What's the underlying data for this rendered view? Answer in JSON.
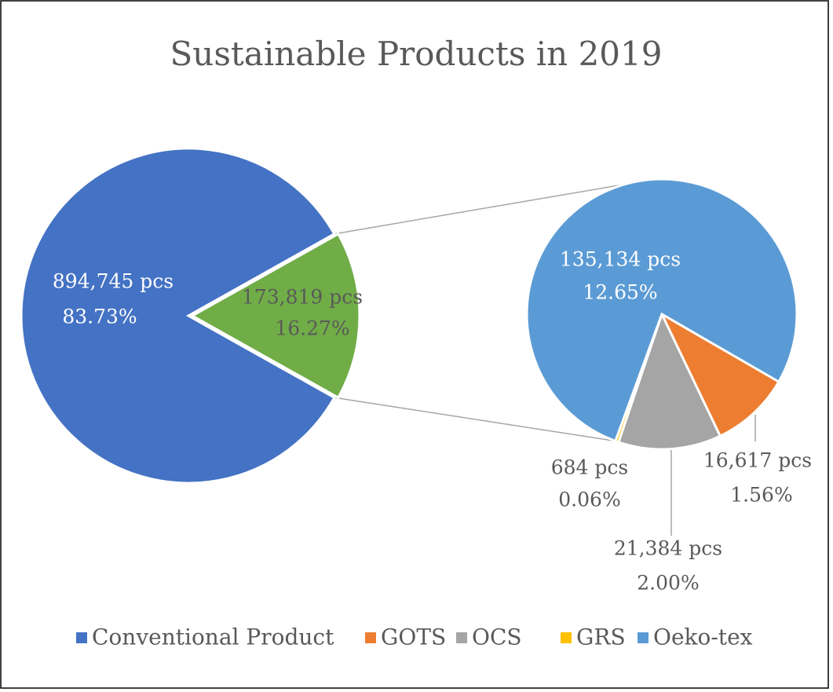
{
  "chart_data": {
    "type": "pie-of-pie",
    "title": "Sustainable Products in 2019",
    "categories": [
      "Conventional Product",
      "GOTS",
      "OCS",
      "GRS",
      "Oeko-tex"
    ],
    "values": [
      894745,
      16617,
      21384,
      684,
      135134
    ],
    "value_labels": [
      "894,745 pcs",
      "16,617 pcs",
      "21,384 pcs",
      "684 pcs",
      "135,134 pcs"
    ],
    "percent_labels": [
      "83.73%",
      "1.56%",
      "2.00%",
      "0.06%",
      "12.65%"
    ],
    "colors": [
      "#4472c4",
      "#ed7d31",
      "#a5a5a5",
      "#ffc000",
      "#5b9bd5"
    ],
    "other": {
      "value": 173819,
      "value_label": "173,819 pcs",
      "percent_label": "16.27%",
      "color": "#70ad47"
    },
    "legend": "bottom"
  }
}
